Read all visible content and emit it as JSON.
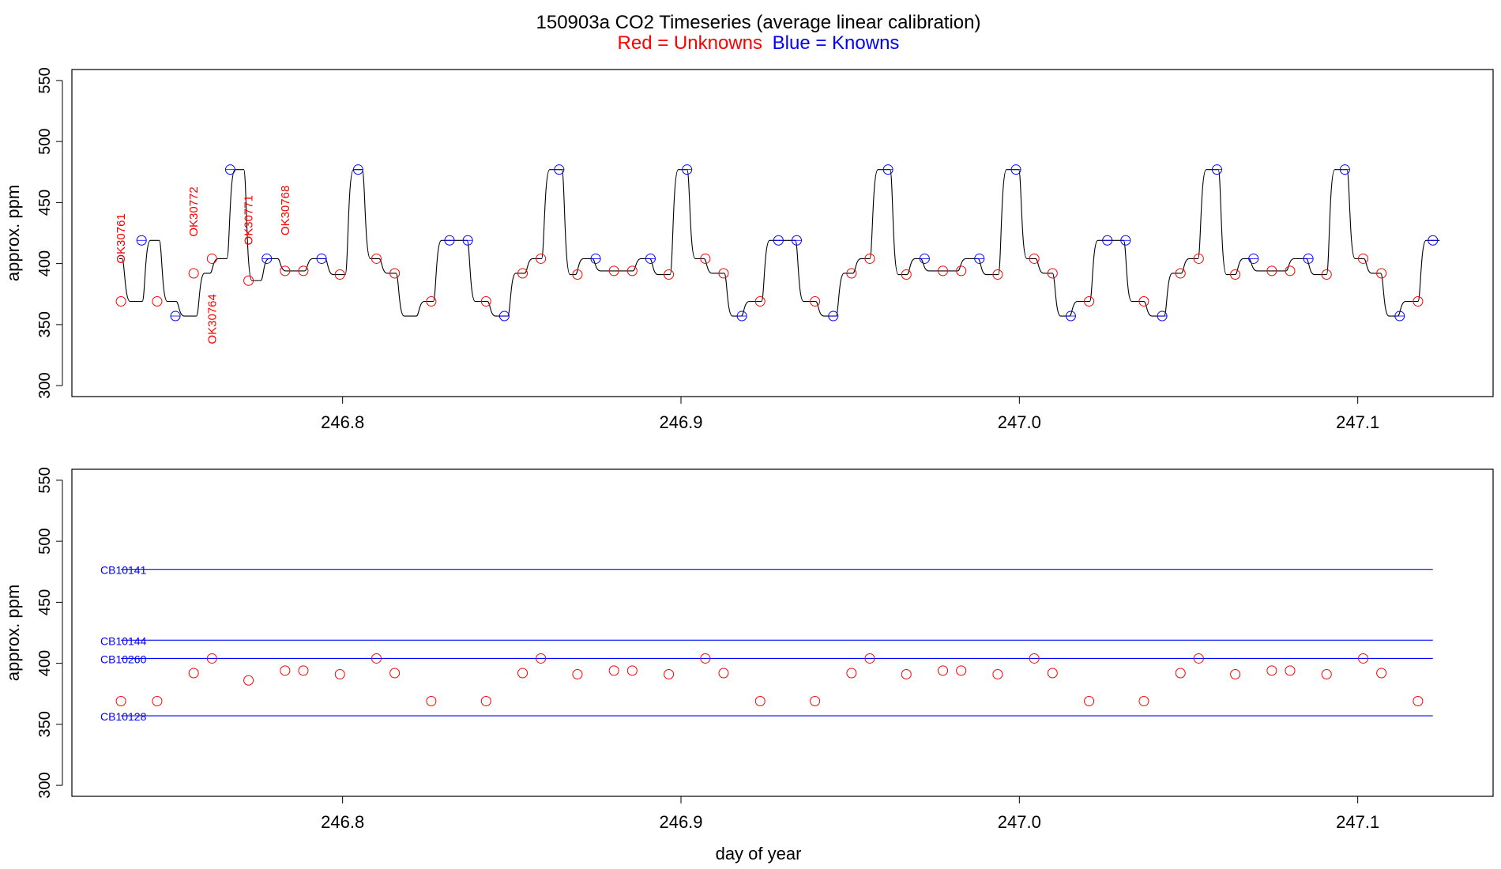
{
  "figure": {
    "title": "150903a   CO2 Timeseries (average linear calibration)",
    "subtitle_red": "Red = Unknowns",
    "subtitle_blue": "Blue = Knowns",
    "xlabel": "day of year"
  },
  "colors": {
    "unknown": "#ff0000",
    "known": "#0000ff",
    "trace": "#000000"
  },
  "chart_data": [
    {
      "type": "line",
      "panel": "top",
      "ylabel": "approx. ppm",
      "ylim": [
        300,
        550
      ],
      "yticks": [
        300,
        350,
        400,
        450,
        500,
        550
      ],
      "xlim": [
        246.72,
        247.14
      ],
      "xticks": [
        246.8,
        246.9,
        247.0,
        247.1
      ],
      "xtick_labels": [
        "246.8",
        "246.9",
        "247.0",
        "247.1"
      ],
      "trace_levels": [
        [
          246.734,
          404
        ],
        [
          246.736,
          369
        ],
        [
          246.742,
          419
        ],
        [
          246.747,
          369
        ],
        [
          246.752,
          357
        ],
        [
          246.758,
          392
        ],
        [
          246.762,
          404
        ],
        [
          246.767,
          477
        ],
        [
          246.772,
          386
        ],
        [
          246.777,
          404
        ],
        [
          246.782,
          394
        ],
        [
          246.79,
          404
        ],
        [
          246.796,
          391
        ],
        [
          246.802,
          477
        ],
        [
          246.807,
          404
        ],
        [
          246.812,
          392
        ],
        [
          246.817,
          357
        ],
        [
          246.823,
          369
        ],
        [
          246.828,
          419
        ],
        [
          246.838,
          369
        ],
        [
          246.844,
          357
        ],
        [
          246.85,
          392
        ],
        [
          246.855,
          404
        ],
        [
          246.86,
          477
        ],
        [
          246.866,
          391
        ],
        [
          246.87,
          404
        ],
        [
          246.875,
          394
        ],
        [
          246.887,
          404
        ],
        [
          246.892,
          391
        ],
        [
          246.898,
          477
        ],
        [
          246.903,
          404
        ],
        [
          246.908,
          392
        ],
        [
          246.914,
          357
        ],
        [
          246.919,
          369
        ],
        [
          246.925,
          419
        ],
        [
          246.935,
          369
        ],
        [
          246.941,
          357
        ],
        [
          246.947,
          392
        ],
        [
          246.952,
          404
        ],
        [
          246.957,
          477
        ],
        [
          246.963,
          391
        ],
        [
          246.968,
          404
        ],
        [
          246.972,
          394
        ],
        [
          246.983,
          404
        ],
        [
          246.989,
          391
        ],
        [
          246.995,
          477
        ],
        [
          247.001,
          404
        ],
        [
          247.006,
          392
        ],
        [
          247.011,
          357
        ],
        [
          247.016,
          369
        ],
        [
          247.022,
          419
        ],
        [
          247.032,
          369
        ],
        [
          247.038,
          357
        ],
        [
          247.044,
          392
        ],
        [
          247.049,
          404
        ],
        [
          247.054,
          477
        ],
        [
          247.06,
          391
        ],
        [
          247.065,
          404
        ],
        [
          247.069,
          394
        ],
        [
          247.08,
          404
        ],
        [
          247.086,
          391
        ],
        [
          247.092,
          477
        ],
        [
          247.098,
          404
        ],
        [
          247.103,
          392
        ],
        [
          247.108,
          357
        ],
        [
          247.113,
          369
        ],
        [
          247.119,
          419
        ],
        [
          247.123,
          419
        ]
      ],
      "unknowns": {
        "x": [
          246.7345,
          246.7452,
          246.756,
          246.7614,
          246.7722,
          246.783,
          246.7884,
          246.7992,
          246.81,
          246.8154,
          246.8262,
          246.8424,
          246.8532,
          246.8586,
          246.8694,
          246.8802,
          246.8856,
          246.8964,
          246.9072,
          246.9126,
          246.9234,
          246.9396,
          246.9504,
          246.9558,
          246.9666,
          246.9774,
          246.9828,
          246.9936,
          247.0044,
          247.0098,
          247.0206,
          247.0368,
          247.0476,
          247.053,
          247.0638,
          247.0746,
          247.08,
          247.0908,
          247.1016,
          247.107,
          247.1178
        ],
        "y": [
          369,
          369,
          392,
          404,
          386,
          394,
          394,
          391,
          404,
          392,
          369,
          369,
          392,
          404,
          391,
          394,
          394,
          391,
          404,
          392,
          369,
          369,
          392,
          404,
          391,
          394,
          394,
          391,
          404,
          392,
          369,
          369,
          392,
          404,
          391,
          394,
          394,
          391,
          404,
          392,
          369
        ]
      },
      "knowns": {
        "x": [
          246.7406,
          246.7506,
          246.7668,
          246.7776,
          246.7938,
          246.8046,
          246.8316,
          246.837,
          246.8478,
          246.864,
          246.8748,
          246.891,
          246.9018,
          246.918,
          246.9288,
          246.9342,
          246.945,
          246.9612,
          246.972,
          246.9882,
          246.999,
          247.0152,
          247.026,
          247.0314,
          247.0422,
          247.0584,
          247.0692,
          247.0854,
          247.0962,
          247.1124,
          247.1222
        ],
        "y": [
          419,
          357,
          477,
          404,
          404,
          477,
          419,
          419,
          357,
          477,
          404,
          404,
          477,
          357,
          419,
          419,
          357,
          477,
          404,
          404,
          477,
          357,
          419,
          419,
          357,
          477,
          404,
          404,
          477,
          357,
          419
        ]
      },
      "annotations": [
        {
          "text": "OK30761",
          "x": 246.7345,
          "y": 400
        },
        {
          "text": "OK30772",
          "x": 246.756,
          "y": 422
        },
        {
          "text": "OK30764",
          "x": 246.7614,
          "y": 334
        },
        {
          "text": "OK30771",
          "x": 246.7722,
          "y": 415
        },
        {
          "text": "OK30768",
          "x": 246.783,
          "y": 423
        }
      ]
    },
    {
      "type": "scatter",
      "panel": "bottom",
      "ylabel": "approx. ppm",
      "ylim": [
        300,
        550
      ],
      "yticks": [
        300,
        350,
        400,
        450,
        500,
        550
      ],
      "xlim": [
        246.72,
        247.14
      ],
      "xticks": [
        246.8,
        246.9,
        247.0,
        247.1
      ],
      "xtick_labels": [
        "246.8",
        "246.9",
        "247.0",
        "247.1"
      ],
      "reference_lines": [
        {
          "name": "CB10141",
          "value": 477
        },
        {
          "name": "CB10144",
          "value": 419
        },
        {
          "name": "CB10260",
          "value": 404
        },
        {
          "name": "CB10128",
          "value": 357
        }
      ],
      "reference_x_range": [
        246.7345,
        247.1222
      ],
      "unknowns": {
        "x": [
          246.7345,
          246.7452,
          246.756,
          246.7614,
          246.7722,
          246.783,
          246.7884,
          246.7992,
          246.81,
          246.8154,
          246.8262,
          246.8424,
          246.8532,
          246.8586,
          246.8694,
          246.8802,
          246.8856,
          246.8964,
          246.9072,
          246.9126,
          246.9234,
          246.9396,
          246.9504,
          246.9558,
          246.9666,
          246.9774,
          246.9828,
          246.9936,
          247.0044,
          247.0098,
          247.0206,
          247.0368,
          247.0476,
          247.053,
          247.0638,
          247.0746,
          247.08,
          247.0908,
          247.1016,
          247.107,
          247.1178
        ],
        "y": [
          369,
          369,
          392,
          404,
          386,
          394,
          394,
          391,
          404,
          392,
          369,
          369,
          392,
          404,
          391,
          394,
          394,
          391,
          404,
          392,
          369,
          369,
          392,
          404,
          391,
          394,
          394,
          391,
          404,
          392,
          369,
          369,
          392,
          404,
          391,
          394,
          394,
          391,
          404,
          392,
          369
        ]
      }
    }
  ]
}
